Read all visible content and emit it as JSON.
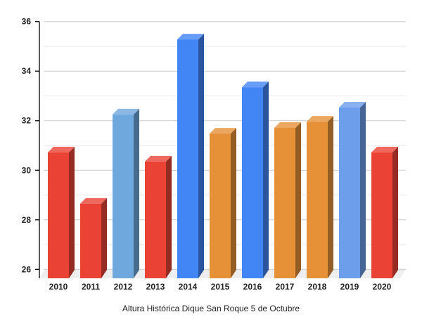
{
  "chart_data": {
    "type": "bar",
    "style": "3d",
    "title": "",
    "xlabel": "Altura Histórica Dique San Roque 5 de Octubre",
    "ylabel": "",
    "ylim": [
      26,
      36
    ],
    "yticks": [
      26,
      28,
      30,
      32,
      34,
      36
    ],
    "grid": true,
    "categories": [
      "2010",
      "2011",
      "2012",
      "2013",
      "2014",
      "2015",
      "2016",
      "2017",
      "2018",
      "2019",
      "2020"
    ],
    "values": [
      30.72,
      28.65,
      32.25,
      30.35,
      35.28,
      31.48,
      33.35,
      31.71,
      31.96,
      32.53,
      30.72
    ],
    "colors": [
      "#ea4335",
      "#ea4335",
      "#6fa8dc",
      "#ea4335",
      "#4285f4",
      "#e69138",
      "#4285f4",
      "#e69138",
      "#e69138",
      "#6d9eeb",
      "#ea4335"
    ],
    "side_colors": [
      "#962b23",
      "#962b23",
      "#476b8c",
      "#962b23",
      "#2a559c",
      "#935d24",
      "#2a559c",
      "#935d24",
      "#935d24",
      "#466597",
      "#962b23"
    ],
    "top_colors": [
      "#ee685d",
      "#ee685d",
      "#8cb9e3",
      "#ee685d",
      "#679df6",
      "#eba760",
      "#679df6",
      "#eba760",
      "#eba760",
      "#8ab1ef",
      "#ee685d"
    ]
  }
}
